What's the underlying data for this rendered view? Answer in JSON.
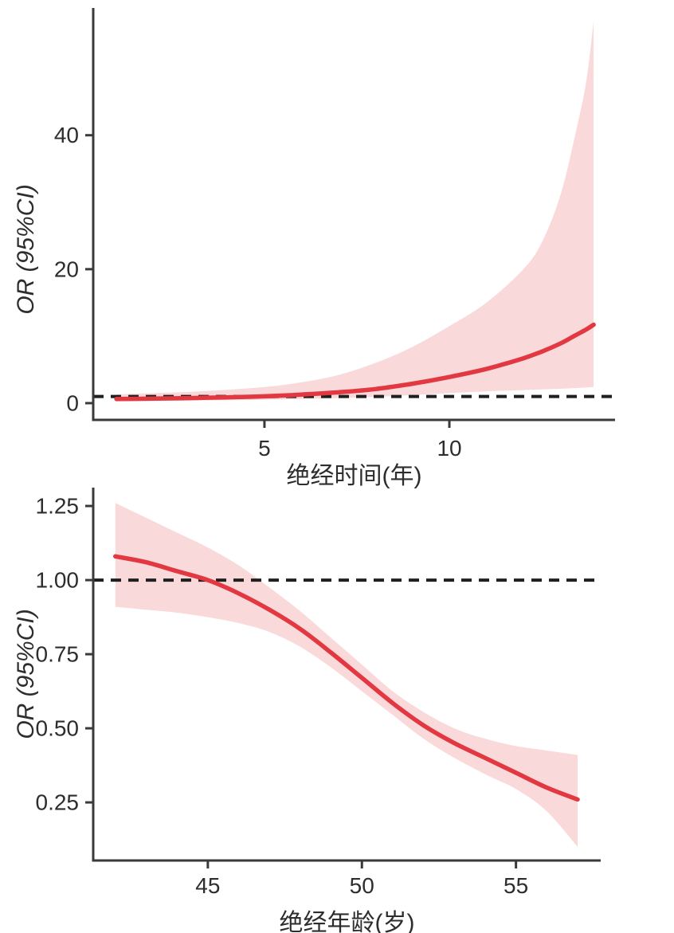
{
  "figure": {
    "description": "Two restricted-cubic-spline odds-ratio plots with 95% confidence bands",
    "background": "#ffffff"
  },
  "colors": {
    "curve": "#e23842",
    "ci_band": "#fad9da",
    "reference_line": "#1f1f1f",
    "axis": "#3a3a3a",
    "text": "#2d2d2d"
  },
  "chart_data": [
    {
      "type": "line",
      "title": "",
      "xlabel": "绝经时间(年)",
      "ylabel": "OR (95%CI)",
      "legend": false,
      "grid": false,
      "reference_line_y": 1,
      "xlim": [
        0.37,
        14.48
      ],
      "ylim": [
        -2.5,
        59
      ],
      "x_ticks": [
        5,
        10
      ],
      "x_tick_labels": [
        "5",
        "10"
      ],
      "y_ticks": [
        0,
        20,
        40
      ],
      "y_tick_labels": [
        "0",
        "20",
        "40"
      ],
      "x": [
        1,
        2,
        3,
        4,
        5,
        6,
        7,
        8,
        9,
        10,
        11,
        12,
        12.5,
        13,
        13.4,
        13.7,
        13.9
      ],
      "series": [
        {
          "name": "OR",
          "role": "mid",
          "values": [
            0.62,
            0.68,
            0.76,
            0.87,
            1.02,
            1.28,
            1.62,
            2.1,
            2.9,
            3.9,
            5.1,
            6.7,
            7.7,
            8.9,
            10.1,
            11.0,
            11.7
          ]
        },
        {
          "name": "95% CI lower",
          "role": "lower",
          "values": [
            0.28,
            0.33,
            0.38,
            0.44,
            0.52,
            0.62,
            0.76,
            0.95,
            1.2,
            1.5,
            1.75,
            1.95,
            2.05,
            2.15,
            2.25,
            2.33,
            2.4
          ]
        },
        {
          "name": "95% CI upper",
          "role": "upper",
          "values": [
            1.3,
            1.5,
            1.7,
            2.0,
            2.4,
            3.1,
            4.2,
            6.0,
            8.4,
            11.5,
            15.0,
            20.0,
            24.0,
            31.0,
            40.0,
            48.0,
            57.0
          ]
        }
      ]
    },
    {
      "type": "line",
      "title": "",
      "xlabel": "绝经年龄(岁)",
      "ylabel": "OR (95%CI)",
      "legend": false,
      "grid": false,
      "reference_line_y": 1,
      "xlim": [
        41.28,
        57.75
      ],
      "ylim": [
        0.054,
        1.312
      ],
      "x_ticks": [
        45,
        50,
        55
      ],
      "x_tick_labels": [
        "45",
        "50",
        "55"
      ],
      "y_ticks": [
        0.25,
        0.5,
        0.75,
        1.0,
        1.25
      ],
      "y_tick_labels": [
        "0.25",
        "0.50",
        "0.75",
        "1.00",
        "1.25"
      ],
      "x": [
        42,
        43,
        44,
        45,
        46,
        47,
        48,
        49,
        50,
        51,
        52,
        53,
        54,
        55,
        56,
        57
      ],
      "series": [
        {
          "name": "OR",
          "role": "mid",
          "values": [
            1.08,
            1.06,
            1.03,
            1.0,
            0.955,
            0.9,
            0.835,
            0.755,
            0.67,
            0.585,
            0.51,
            0.45,
            0.4,
            0.35,
            0.3,
            0.26
          ]
        },
        {
          "name": "95% CI lower",
          "role": "lower",
          "values": [
            0.91,
            0.9,
            0.89,
            0.875,
            0.855,
            0.825,
            0.775,
            0.705,
            0.625,
            0.545,
            0.465,
            0.4,
            0.345,
            0.295,
            0.22,
            0.1
          ]
        },
        {
          "name": "95% CI upper",
          "role": "upper",
          "values": [
            1.26,
            1.21,
            1.16,
            1.11,
            1.05,
            0.975,
            0.895,
            0.805,
            0.715,
            0.625,
            0.555,
            0.5,
            0.465,
            0.44,
            0.425,
            0.41
          ]
        }
      ]
    }
  ]
}
